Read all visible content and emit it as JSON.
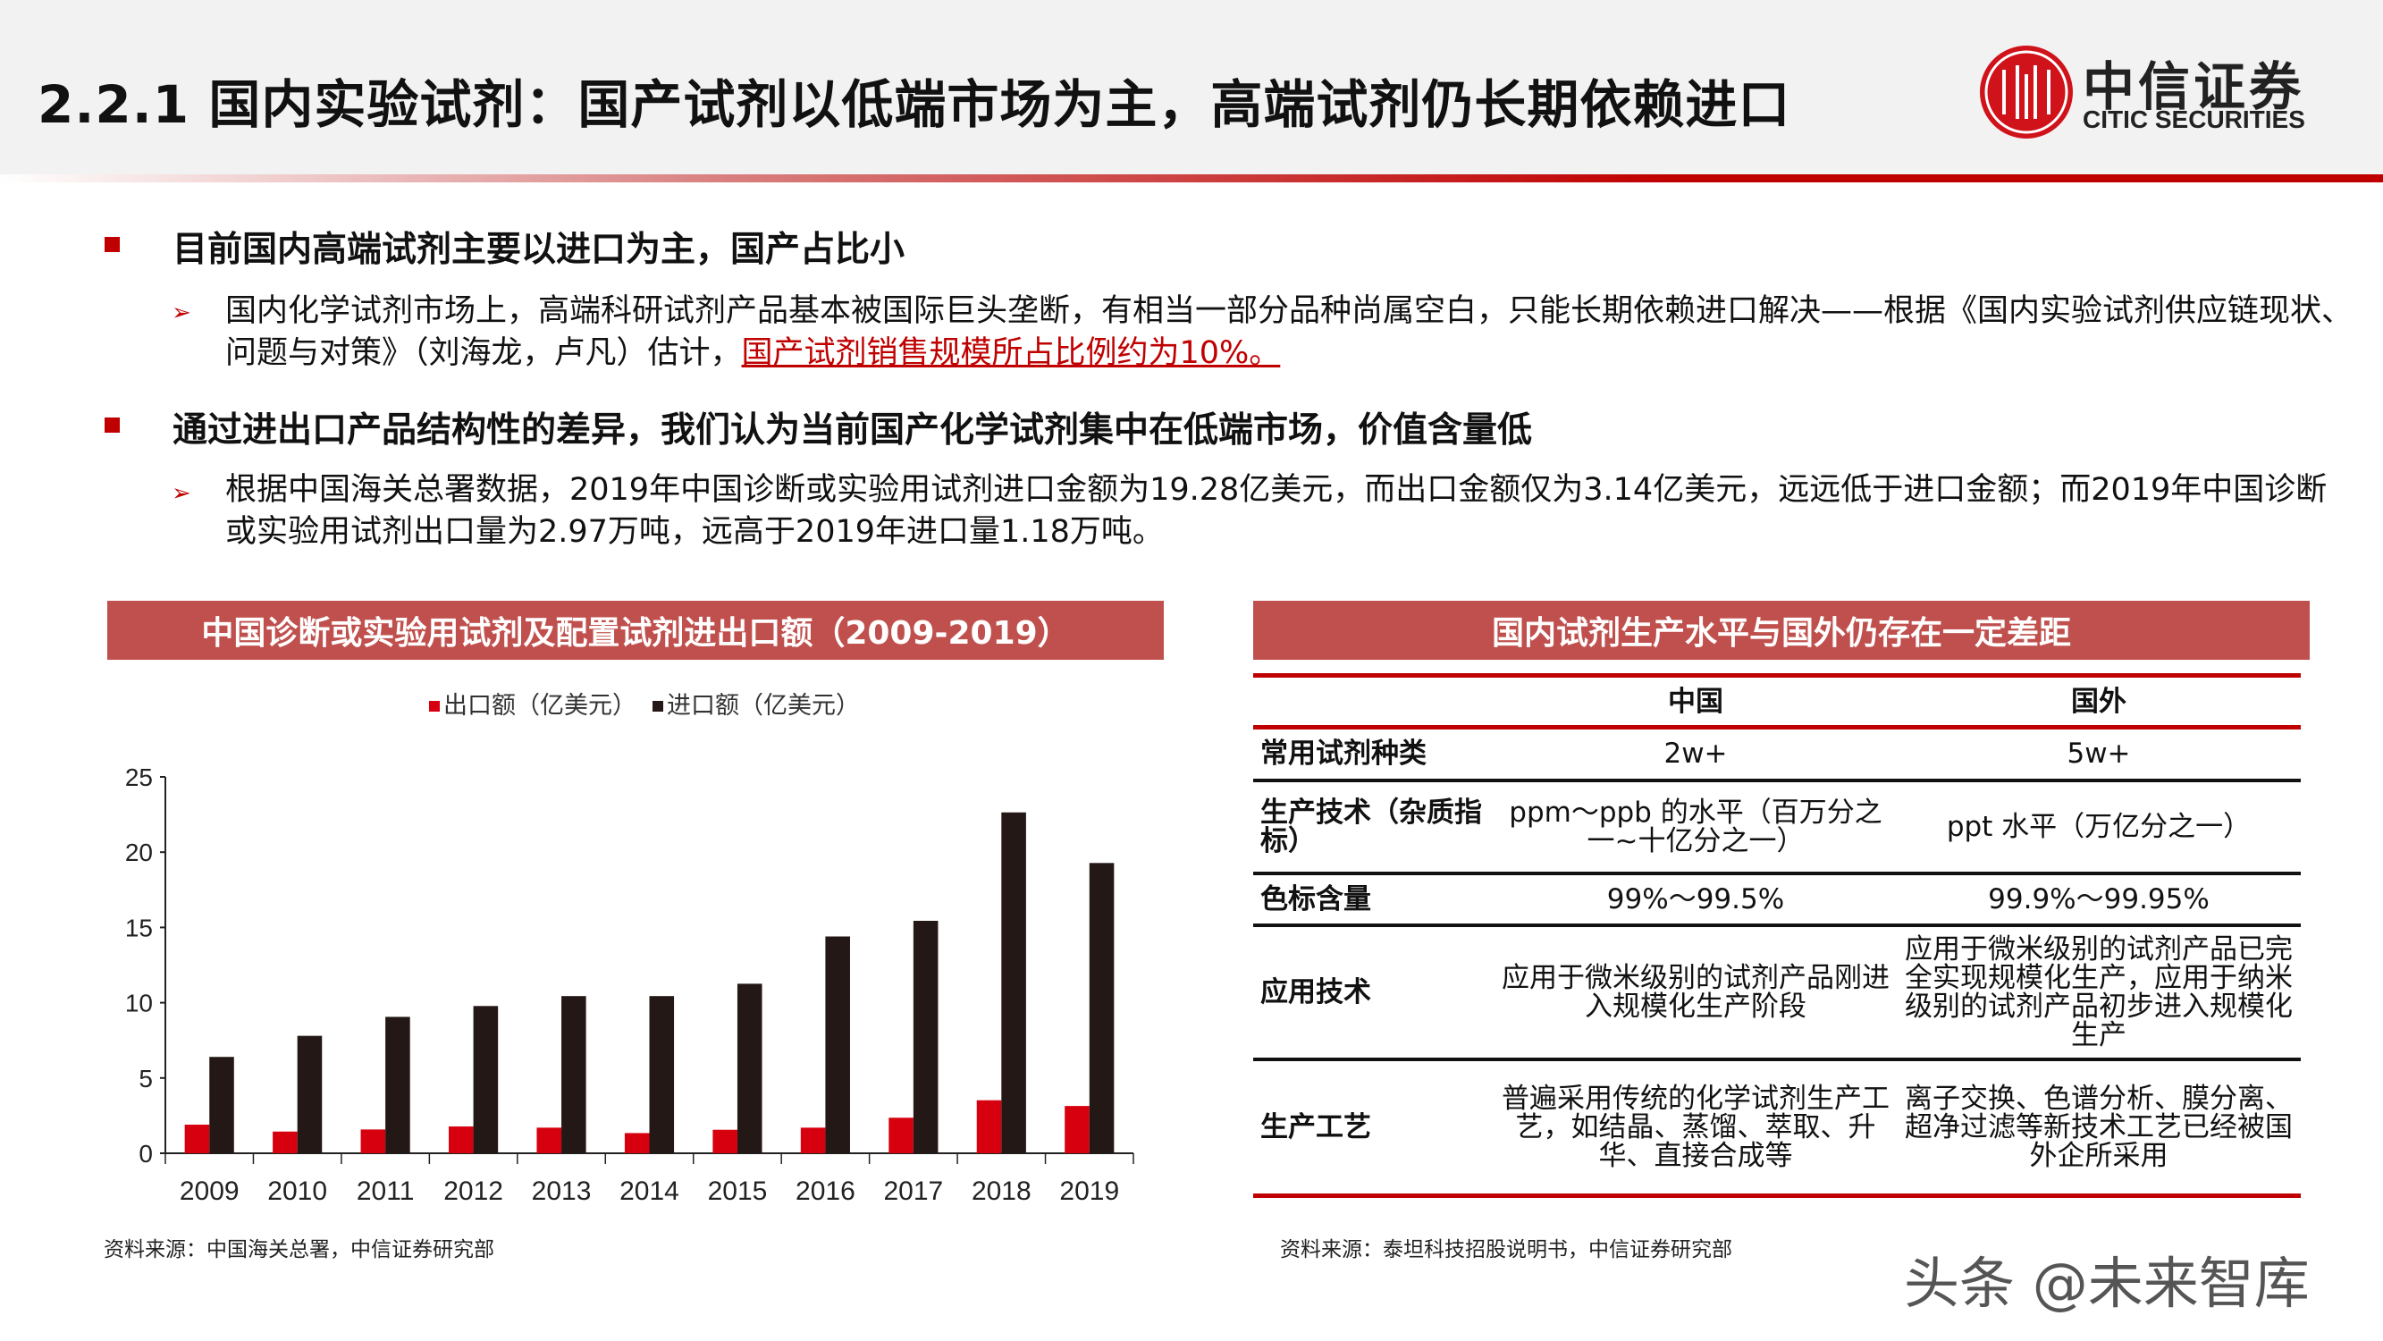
{
  "header": {
    "title": "2.2.1 国内实验试剂：国产试剂以低端市场为主，高端试剂仍长期依赖进口",
    "logo_cn": "中信证券",
    "logo_en": "CITIC SECURITIES"
  },
  "bullets": [
    {
      "heading": "目前国内高端试剂主要以进口为主，国产占比小",
      "text": "国内化学试剂市场上，高端科研试剂产品基本被国际巨头垄断，有相当一部分品种尚属空白，只能长期依赖进口解决——根据《国内实验试剂供应链现状、问题与对策》（刘海龙，卢凡）估计，",
      "highlight": "国产试剂销售规模所占比例约为10%。"
    },
    {
      "heading": "通过进出口产品结构性的差异，我们认为当前国产化学试剂集中在低端市场，价值含量低",
      "text": "根据中国海关总署数据，2019年中国诊断或实验用试剂进口金额为19.28亿美元，而出口金额仅为3.14亿美元，远远低于进口金额；而2019年中国诊断或实验用试剂出口量为2.97万吨，远高于2019年进口量1.18万吨。"
    }
  ],
  "left_panel": {
    "title": "中国诊断或实验用试剂及配置试剂进出口额（2009-2019）",
    "source": "资料来源：中国海关总署，中信证券研究部"
  },
  "chart_data": {
    "type": "bar",
    "categories": [
      "2009",
      "2010",
      "2011",
      "2012",
      "2013",
      "2014",
      "2015",
      "2016",
      "2017",
      "2018",
      "2019"
    ],
    "series": [
      {
        "name": "出口额（亿美元）",
        "color": "#d7000f",
        "values": [
          1.9,
          1.44,
          1.58,
          1.78,
          1.7,
          1.34,
          1.56,
          1.7,
          2.36,
          3.52,
          3.14
        ]
      },
      {
        "name": "进口额（亿美元）",
        "color": "#231815",
        "values": [
          6.4,
          7.8,
          9.06,
          9.78,
          10.44,
          10.44,
          11.26,
          14.4,
          15.44,
          22.64,
          19.28
        ]
      }
    ],
    "ylim": [
      0,
      25
    ],
    "yticks": [
      "0",
      "5",
      "10",
      "15",
      "20",
      "25"
    ],
    "legend": "top",
    "grid": false
  },
  "right_panel": {
    "title": "国内试剂生产水平与国外仍存在一定差距",
    "columns": [
      "",
      "中国",
      "国外"
    ],
    "rows": [
      [
        "常用试剂种类",
        "2w+",
        "5w+"
      ],
      [
        "生产技术（杂质指标）",
        "ppm～ppb 的水平（百万分之一~十亿分之一）",
        "ppt 水平（万亿分之一）"
      ],
      [
        "色标含量",
        "99%～99.5%",
        "99.9%～99.95%"
      ],
      [
        "应用技术",
        "应用于微米级别的试剂产品刚进入规模化生产阶段",
        "应用于微米级别的试剂产品已完全实现规模化生产，应用于纳米级别的试剂产品初步进入规模化生产"
      ],
      [
        "生产工艺",
        "普遍采用传统的化学试剂生产工艺，如结晶、蒸馏、萃取、升华、直接合成等",
        "离子交换、色谱分析、膜分离、超净过滤等新技术工艺已经被国外企所采用"
      ]
    ],
    "source": "资料来源：泰坦科技招股说明书，中信证券研究部"
  },
  "watermark": "头条 @未来智库",
  "colors": {
    "accent": "#c00000",
    "panel_header": "#c0504d"
  }
}
